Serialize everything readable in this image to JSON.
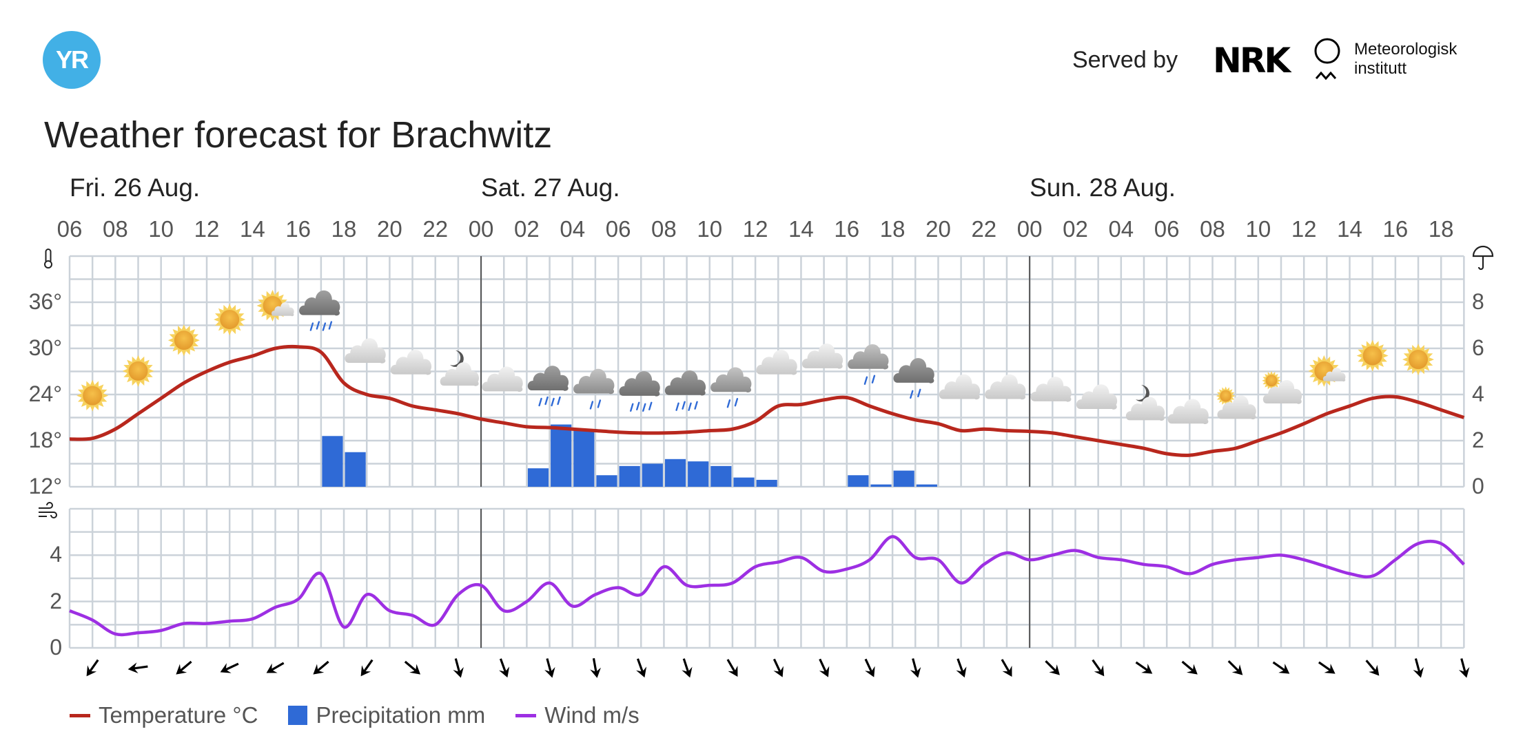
{
  "header": {
    "logo_text": "YR",
    "served_by": "Served by",
    "nrk_logo": "NRK",
    "met_line1": "Meteorologisk",
    "met_line2": "institutt",
    "title": "Weather forecast for Brachwitz"
  },
  "colors": {
    "temperature": "#b8271d",
    "precipitation": "#2f6ad6",
    "wind": "#9d2fe3",
    "grid": "#cbd2d9",
    "logo": "#42b0e6"
  },
  "chart_data": {
    "type": "line",
    "title": "Weather forecast for Brachwitz",
    "days": [
      {
        "label": "Fri. 26 Aug.",
        "start_hour_index": 0
      },
      {
        "label": "Sat. 27 Aug.",
        "start_hour_index": 18
      },
      {
        "label": "Sun. 28 Aug.",
        "start_hour_index": 42
      }
    ],
    "hour_ticks": [
      "06",
      "08",
      "10",
      "12",
      "14",
      "16",
      "18",
      "20",
      "22",
      "00",
      "02",
      "04",
      "06",
      "08",
      "10",
      "12",
      "14",
      "16",
      "18",
      "20",
      "22",
      "00",
      "02",
      "04",
      "06",
      "08",
      "10",
      "12",
      "14",
      "16",
      "18"
    ],
    "x_start": "Fri 06:00",
    "x_step_hours": 1,
    "temp_axis": {
      "label_ticks": [
        "12°",
        "18°",
        "24°",
        "30°",
        "36°"
      ],
      "tick_values": [
        12,
        18,
        24,
        30,
        36
      ],
      "range": [
        12,
        42
      ],
      "unit": "°C"
    },
    "precip_axis": {
      "label_ticks": [
        "0",
        "2",
        "4",
        "6",
        "8"
      ],
      "tick_values": [
        0,
        2,
        4,
        6,
        8
      ],
      "range": [
        0,
        10
      ],
      "unit": "mm"
    },
    "wind_axis": {
      "label_ticks": [
        "0",
        "2",
        "4"
      ],
      "tick_values": [
        0,
        2,
        4
      ],
      "range": [
        0,
        6
      ],
      "unit": "m/s"
    },
    "series": [
      {
        "name": "Temperature °C",
        "type": "line",
        "values": [
          18.2,
          18.3,
          19.5,
          21.5,
          23.5,
          25.5,
          27,
          28.2,
          29,
          30,
          30.2,
          29.5,
          25.5,
          24,
          23.5,
          22.5,
          22,
          21.5,
          20.8,
          20.3,
          19.8,
          19.7,
          19.5,
          19.3,
          19.1,
          19,
          19,
          19.1,
          19.3,
          19.5,
          20.5,
          22.5,
          22.7,
          23.3,
          23.6,
          22.5,
          21.5,
          20.7,
          20.2,
          19.3,
          19.5,
          19.3,
          19.2,
          19,
          18.5,
          18,
          17.5,
          17,
          16.3,
          16.1,
          16.6,
          17,
          18,
          19,
          20.2,
          21.5,
          22.5,
          23.5,
          23.7,
          23,
          22,
          21
        ]
      },
      {
        "name": "Precipitation mm",
        "type": "bar",
        "values": [
          0,
          0,
          0,
          0,
          0,
          0,
          0,
          0,
          0,
          0,
          0,
          2.2,
          1.5,
          0,
          0,
          0,
          0,
          0,
          0,
          0,
          0.8,
          2.7,
          2.5,
          0.5,
          0.9,
          1.0,
          1.2,
          1.1,
          0.9,
          0.4,
          0.3,
          0,
          0,
          0,
          0.5,
          0.1,
          0.7,
          0.1,
          0,
          0,
          0,
          0,
          0,
          0,
          0,
          0,
          0,
          0,
          0,
          0,
          0,
          0,
          0,
          0,
          0,
          0,
          0,
          0,
          0,
          0,
          0
        ]
      },
      {
        "name": "Wind m/s",
        "type": "line",
        "values": [
          1.6,
          1.2,
          0.6,
          0.65,
          0.75,
          1.05,
          1.05,
          1.15,
          1.25,
          1.75,
          2.1,
          3.2,
          0.9,
          2.3,
          1.6,
          1.4,
          1.0,
          2.3,
          2.7,
          1.6,
          2.0,
          2.8,
          1.8,
          2.3,
          2.6,
          2.3,
          3.5,
          2.7,
          2.7,
          2.8,
          3.5,
          3.7,
          3.9,
          3.3,
          3.4,
          3.8,
          4.8,
          3.9,
          3.8,
          2.8,
          3.6,
          4.1,
          3.8,
          4.0,
          4.2,
          3.9,
          3.8,
          3.6,
          3.5,
          3.2,
          3.6,
          3.8,
          3.9,
          4.0,
          3.8,
          3.5,
          3.2,
          3.1,
          3.8,
          4.5,
          4.5,
          3.6
        ]
      }
    ],
    "wind_direction_deg": [
      215,
      262,
      230,
      245,
      240,
      230,
      215,
      130,
      165,
      160,
      165,
      170,
      160,
      162,
      150,
      155,
      155,
      155,
      165,
      160,
      150,
      135,
      145,
      125,
      130,
      135,
      125,
      125,
      140,
      165,
      165
    ],
    "weather_symbols": [
      "sun",
      "sun",
      "sun",
      "sun",
      "fair-day",
      "heavy-rain",
      "cloudy",
      "cloudy",
      "partly-cloudy-night",
      "cloudy",
      "heavy-rain",
      "light-rain",
      "heavy-rain",
      "heavy-rain",
      "light-rain",
      "cloudy",
      "cloudy",
      "light-rain",
      "light-rain-dark",
      "cloudy",
      "cloudy",
      "cloudy",
      "cloudy",
      "partly-cloudy-night",
      "cloudy",
      "partly-cloudy-day",
      "partly-cloudy-day",
      "fair-day",
      "sun",
      "sun"
    ],
    "legend": [
      {
        "label": "Temperature °C",
        "kind": "line",
        "color": "#b8271d"
      },
      {
        "label": "Precipitation mm",
        "kind": "box",
        "color": "#2f6ad6"
      },
      {
        "label": "Wind m/s",
        "kind": "line",
        "color": "#9d2fe3"
      }
    ],
    "legend_position": "bottom-left",
    "grid": true
  }
}
